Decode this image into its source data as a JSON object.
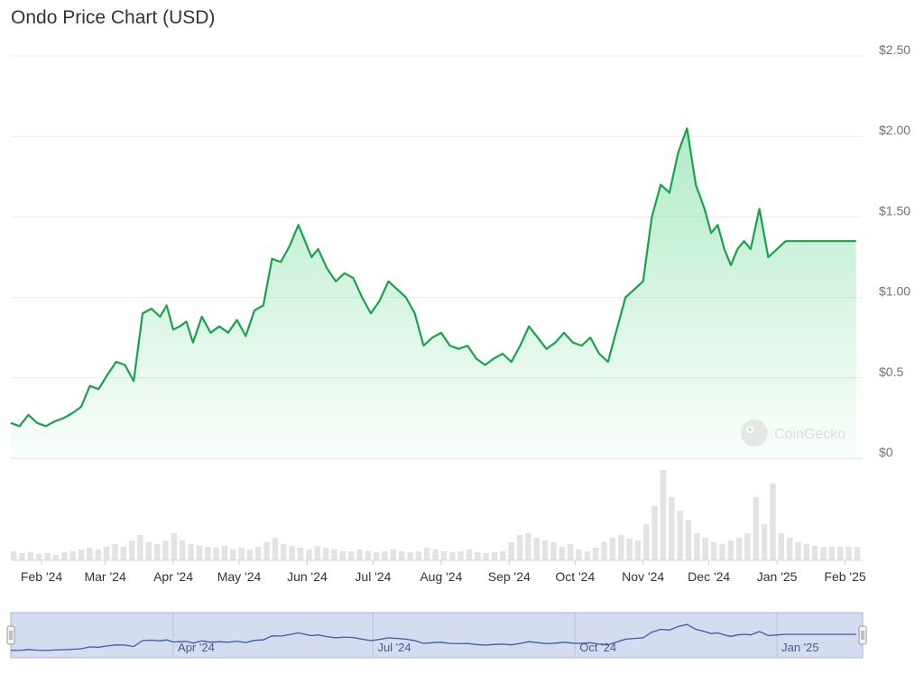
{
  "chart_data": {
    "type": "line",
    "title": "Ondo Price Chart (USD)",
    "watermark": "CoinGecko",
    "currency": "USD",
    "y_tick_labels": [
      "$0",
      "$0.5",
      "$1.00",
      "$1.50",
      "$2.00",
      "$2.50"
    ],
    "y_tick_values": [
      0,
      0.5,
      1.0,
      1.5,
      2.0,
      2.5
    ],
    "ylim": [
      0,
      2.5
    ],
    "x_tick_labels": [
      "Feb '24",
      "Mar '24",
      "Apr '24",
      "May '24",
      "Jun '24",
      "Jul '24",
      "Aug '24",
      "Sep '24",
      "Oct '24",
      "Nov '24",
      "Dec '24",
      "Jan '25",
      "Feb '25"
    ],
    "x_tick_dates": [
      "2024-02-01",
      "2024-03-01",
      "2024-04-01",
      "2024-05-01",
      "2024-06-01",
      "2024-07-01",
      "2024-08-01",
      "2024-09-01",
      "2024-10-01",
      "2024-11-01",
      "2024-12-01",
      "2025-01-01",
      "2025-02-01"
    ],
    "navigator_tick_labels": [
      "Apr '24",
      "Jul '24",
      "Oct '24",
      "Jan '25"
    ],
    "navigator_tick_dates": [
      "2024-04-01",
      "2024-07-01",
      "2024-10-01",
      "2025-01-01"
    ],
    "grid": true,
    "colors": {
      "line": "#16a34a",
      "area": "#22c55e",
      "volume": "#e5e7eb",
      "navigator_bg": "#d4dcf0",
      "navigator_line": "#3f58a8"
    },
    "price": {
      "dates": [
        "2024-01-18",
        "2024-01-22",
        "2024-01-26",
        "2024-01-30",
        "2024-02-03",
        "2024-02-07",
        "2024-02-11",
        "2024-02-15",
        "2024-02-19",
        "2024-02-23",
        "2024-02-27",
        "2024-03-02",
        "2024-03-06",
        "2024-03-10",
        "2024-03-14",
        "2024-03-18",
        "2024-03-22",
        "2024-03-26",
        "2024-03-29",
        "2024-04-01",
        "2024-04-04",
        "2024-04-07",
        "2024-04-10",
        "2024-04-14",
        "2024-04-18",
        "2024-04-22",
        "2024-04-26",
        "2024-04-30",
        "2024-05-04",
        "2024-05-08",
        "2024-05-12",
        "2024-05-16",
        "2024-05-20",
        "2024-05-24",
        "2024-05-28",
        "2024-05-31",
        "2024-06-03",
        "2024-06-06",
        "2024-06-10",
        "2024-06-14",
        "2024-06-18",
        "2024-06-22",
        "2024-06-26",
        "2024-06-30",
        "2024-07-04",
        "2024-07-08",
        "2024-07-12",
        "2024-07-16",
        "2024-07-20",
        "2024-07-24",
        "2024-07-28",
        "2024-08-01",
        "2024-08-05",
        "2024-08-09",
        "2024-08-13",
        "2024-08-17",
        "2024-08-21",
        "2024-08-25",
        "2024-08-29",
        "2024-09-02",
        "2024-09-06",
        "2024-09-10",
        "2024-09-14",
        "2024-09-18",
        "2024-09-22",
        "2024-09-26",
        "2024-09-30",
        "2024-10-04",
        "2024-10-08",
        "2024-10-12",
        "2024-10-16",
        "2024-10-20",
        "2024-10-24",
        "2024-10-28",
        "2024-11-01",
        "2024-11-05",
        "2024-11-09",
        "2024-11-13",
        "2024-11-17",
        "2024-11-21",
        "2024-11-25",
        "2024-11-29",
        "2024-12-02",
        "2024-12-05",
        "2024-12-08",
        "2024-12-11",
        "2024-12-14",
        "2024-12-17",
        "2024-12-20",
        "2024-12-24",
        "2024-12-28",
        "2025-01-01",
        "2025-01-05",
        "2025-01-09",
        "2025-01-13",
        "2025-01-17",
        "2025-01-21",
        "2025-01-25",
        "2025-01-29",
        "2025-02-02",
        "2025-02-06"
      ],
      "values": [
        0.22,
        0.2,
        0.27,
        0.22,
        0.2,
        0.23,
        0.25,
        0.28,
        0.32,
        0.45,
        0.43,
        0.52,
        0.6,
        0.58,
        0.48,
        0.9,
        0.93,
        0.88,
        0.95,
        0.8,
        0.82,
        0.85,
        0.72,
        0.88,
        0.78,
        0.82,
        0.78,
        0.86,
        0.76,
        0.92,
        0.95,
        1.24,
        1.22,
        1.32,
        1.45,
        1.35,
        1.25,
        1.3,
        1.18,
        1.1,
        1.15,
        1.12,
        1.0,
        0.9,
        0.98,
        1.1,
        1.05,
        1.0,
        0.9,
        0.7,
        0.75,
        0.78,
        0.7,
        0.68,
        0.7,
        0.62,
        0.58,
        0.62,
        0.65,
        0.6,
        0.7,
        0.82,
        0.75,
        0.68,
        0.72,
        0.78,
        0.72,
        0.7,
        0.75,
        0.65,
        0.6,
        0.8,
        1.0,
        1.05,
        1.1,
        1.5,
        1.7,
        1.65,
        1.9,
        2.05,
        1.7,
        1.55,
        1.4,
        1.45,
        1.3,
        1.2,
        1.3,
        1.35,
        1.3,
        1.55,
        1.25,
        1.3,
        1.35,
        1.35,
        1.35,
        1.35,
        1.35,
        1.35,
        1.35,
        1.35,
        1.35
      ]
    },
    "volume_relative": [
      0.1,
      0.08,
      0.09,
      0.07,
      0.08,
      0.06,
      0.09,
      0.1,
      0.12,
      0.14,
      0.12,
      0.15,
      0.18,
      0.15,
      0.22,
      0.28,
      0.2,
      0.18,
      0.22,
      0.3,
      0.22,
      0.18,
      0.16,
      0.15,
      0.14,
      0.16,
      0.12,
      0.14,
      0.12,
      0.15,
      0.2,
      0.25,
      0.18,
      0.16,
      0.14,
      0.12,
      0.16,
      0.14,
      0.12,
      0.1,
      0.1,
      0.12,
      0.1,
      0.09,
      0.1,
      0.12,
      0.1,
      0.09,
      0.1,
      0.14,
      0.12,
      0.1,
      0.09,
      0.1,
      0.12,
      0.09,
      0.08,
      0.09,
      0.1,
      0.2,
      0.28,
      0.3,
      0.25,
      0.22,
      0.2,
      0.15,
      0.18,
      0.12,
      0.1,
      0.14,
      0.2,
      0.25,
      0.28,
      0.24,
      0.22,
      0.4,
      0.6,
      1.0,
      0.7,
      0.55,
      0.45,
      0.3,
      0.25,
      0.2,
      0.18,
      0.22,
      0.25,
      0.3,
      0.7,
      0.4,
      0.85,
      0.3,
      0.25,
      0.2,
      0.18,
      0.16,
      0.15,
      0.15,
      0.15,
      0.15,
      0.15
    ]
  }
}
